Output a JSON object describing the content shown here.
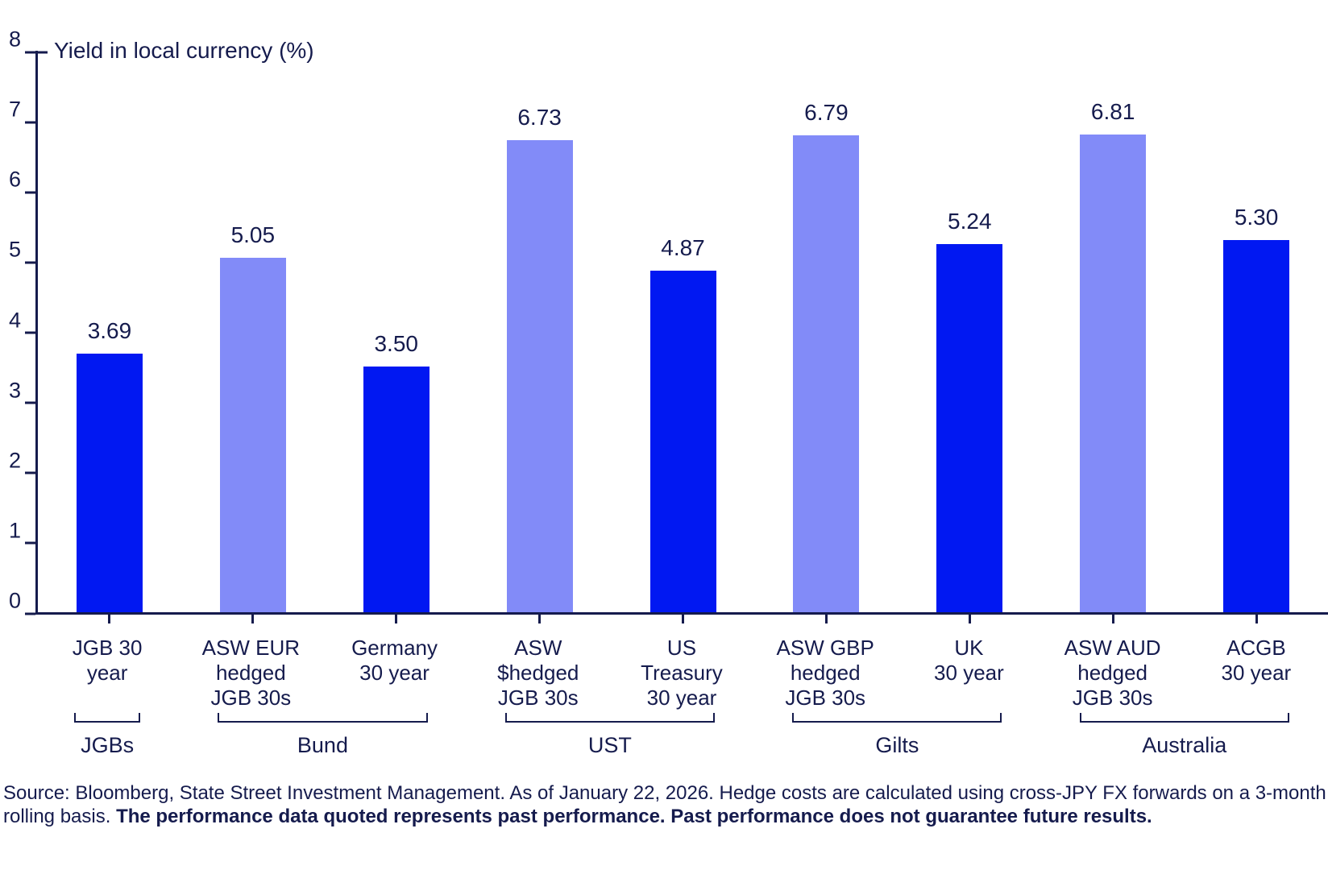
{
  "accent_colors": {
    "navy_text": "#151b4d",
    "bar_solid_blue": "#0118f2",
    "bar_hedged_periwinkle": "#828bf8"
  },
  "chart_data": {
    "type": "bar",
    "title": "Yield in local currency (%)",
    "ylabel": "Yield in local currency (%)",
    "xlabel": "",
    "ylim": [
      0,
      8
    ],
    "yticks": [
      0,
      1,
      2,
      3,
      4,
      5,
      6,
      7,
      8
    ],
    "grid": false,
    "legend": "none",
    "categories": [
      [
        "JGB 30",
        "year"
      ],
      [
        "ASW EUR",
        "hedged",
        "JGB 30s"
      ],
      [
        "Germany",
        "30 year"
      ],
      [
        "ASW",
        "$hedged",
        "JGB 30s"
      ],
      [
        "US",
        "Treasury",
        "30 year"
      ],
      [
        "ASW GBP",
        "hedged",
        "JGB 30s"
      ],
      [
        "UK",
        "30 year"
      ],
      [
        "ASW AUD",
        "hedged",
        "JGB 30s"
      ],
      [
        "ACGB",
        "30 year"
      ]
    ],
    "values": [
      3.69,
      5.05,
      3.5,
      6.73,
      4.87,
      6.79,
      5.24,
      6.81,
      5.3
    ],
    "value_labels": [
      "3.69",
      "5.05",
      "3.50",
      "6.73",
      "4.87",
      "6.79",
      "5.24",
      "6.81",
      "5.30"
    ],
    "bar_styles": [
      "solid",
      "hedged",
      "solid",
      "hedged",
      "solid",
      "hedged",
      "solid",
      "hedged",
      "solid"
    ],
    "bar_colors": {
      "solid": "#0118f2",
      "hedged": "#828bf8"
    },
    "groups": [
      {
        "label": "JGBs",
        "from": 0,
        "to": 0
      },
      {
        "label": "Bund",
        "from": 1,
        "to": 2
      },
      {
        "label": "UST",
        "from": 3,
        "to": 4
      },
      {
        "label": "Gilts",
        "from": 5,
        "to": 6
      },
      {
        "label": "Australia",
        "from": 7,
        "to": 8
      }
    ]
  },
  "source_note": {
    "regular": "Source: Bloomberg, State Street Investment Management. As of January 22, 2026. Hedge costs are calculated using cross-JPY FX forwards on a 3-month rolling basis. ",
    "bold": "The performance data quoted represents past performance. Past performance does not guarantee future results."
  }
}
